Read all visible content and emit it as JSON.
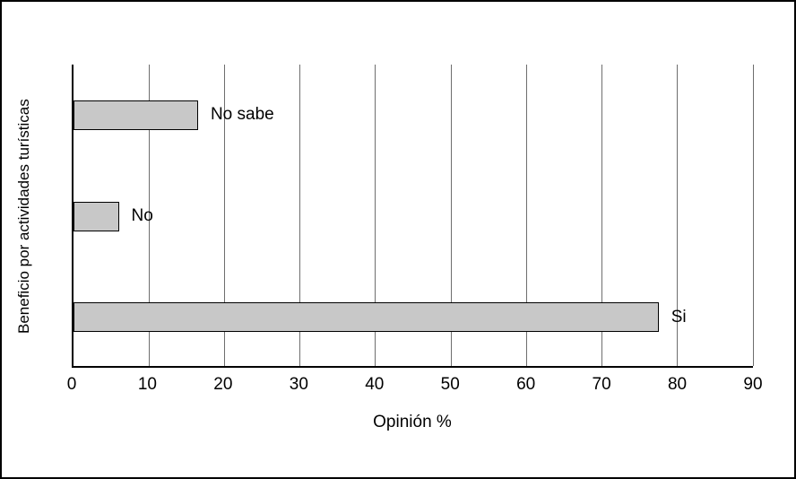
{
  "chart_data": {
    "type": "bar",
    "orientation": "horizontal",
    "title": "",
    "xlabel": "Opinión %",
    "ylabel": "Beneficio por actividades turísticas",
    "categories": [
      "No sabe",
      "No",
      "Si"
    ],
    "category_order": "top-to-bottom",
    "values": [
      16.5,
      6,
      77.5
    ],
    "xlim": [
      0,
      90
    ],
    "xticks": [
      0,
      10,
      20,
      30,
      40,
      50,
      60,
      70,
      80,
      90
    ],
    "grid": true,
    "legend": "none",
    "bar_fill_color": "#c8c8c8",
    "bar_border_color": "#000000",
    "gridline_color": "#6e6e6e"
  }
}
